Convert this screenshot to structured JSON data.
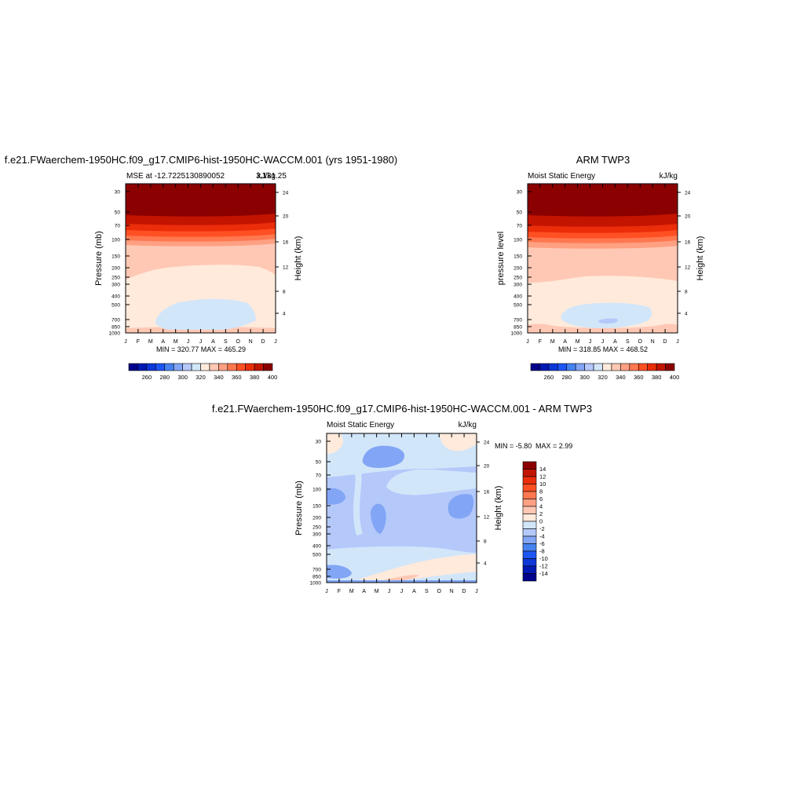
{
  "colors": {
    "scale": [
      "#00008b",
      "#0019b4",
      "#0d37d7",
      "#1e56f5",
      "#4682f0",
      "#82a5f5",
      "#b4c8fa",
      "#d2e6fa",
      "#ffeadb",
      "#ffc8b4",
      "#ffa082",
      "#ff7850",
      "#ff5023",
      "#eb2d0a",
      "#c31400",
      "#8b0000"
    ]
  },
  "panels": {
    "top_left": {
      "title": "f.e21.FWaerchem-1950HC.f09_g17.CMIP6-hist-1950HC-WACCM.001 (yrs 1951-1980)",
      "left_label": "MSE at -12.7225130890052",
      "overlap_label": "3,131.25",
      "units": "kJ/kg",
      "ylabel": "Pressure (mb)",
      "ylabel_right": "Height (km)",
      "minmax": "MIN = 320.77  MAX = 465.29"
    },
    "top_right": {
      "title": "ARM TWP3",
      "left_label": "Moist Static Energy",
      "units": "kJ/kg",
      "ylabel": "pressure level",
      "ylabel_right": "Height (km)",
      "minmax": "MIN = 318.85  MAX = 468.52"
    },
    "bottom": {
      "title": "f.e21.FWaerchem-1950HC.f09_g17.CMIP6-hist-1950HC-WACCM.001 - ARM TWP3",
      "left_label": "Moist Static Energy",
      "units": "kJ/kg",
      "ylabel": "Pressure (mb)",
      "ylabel_right": "Height (km)",
      "minmax_min": "MIN =  -5.80",
      "minmax_max": "MAX =   2.99"
    }
  },
  "chart_data": [
    {
      "type": "heatmap",
      "id": "model",
      "x": [
        "J",
        "F",
        "M",
        "A",
        "M",
        "J",
        "J",
        "A",
        "S",
        "O",
        "N",
        "D",
        "J"
      ],
      "y_ticks": [
        "30",
        "50",
        "70",
        "100",
        "150",
        "200",
        "250",
        "300",
        "400",
        "500",
        "700",
        "850",
        "1000"
      ],
      "y_right_ticks": [
        "24",
        "20",
        "16",
        "12",
        "8",
        "4"
      ],
      "bands_top_to_bottom": [
        ">400",
        "390-400",
        "380-390",
        "370-380",
        "360-370",
        "350-360",
        "340-350",
        "330-340",
        "320-330"
      ],
      "colorbar": {
        "labels": [
          "260",
          "280",
          "300",
          "320",
          "340",
          "360",
          "380",
          "400"
        ]
      },
      "min": 320.77,
      "max": 465.29
    },
    {
      "type": "heatmap",
      "id": "obs",
      "x": [
        "J",
        "F",
        "M",
        "A",
        "M",
        "J",
        "J",
        "A",
        "S",
        "O",
        "N",
        "D",
        "J"
      ],
      "y_ticks": [
        "30",
        "50",
        "70",
        "100",
        "150",
        "200",
        "250",
        "300",
        "400",
        "500",
        "700",
        "850",
        "1000"
      ],
      "y_right_ticks": [
        "24",
        "20",
        "16",
        "12",
        "8",
        "4"
      ],
      "bands_top_to_bottom": [
        ">400",
        "390-400",
        "380-390",
        "370-380",
        "360-370",
        "350-360",
        "340-350",
        "330-340",
        "320-330",
        "310-320"
      ],
      "colorbar": {
        "labels": [
          "260",
          "280",
          "300",
          "320",
          "340",
          "360",
          "380",
          "400"
        ]
      },
      "min": 318.85,
      "max": 468.52
    },
    {
      "type": "heatmap",
      "id": "difference",
      "x": [
        "J",
        "F",
        "M",
        "A",
        "M",
        "J",
        "J",
        "A",
        "S",
        "O",
        "N",
        "D",
        "J"
      ],
      "y_ticks": [
        "30",
        "50",
        "70",
        "100",
        "150",
        "200",
        "250",
        "300",
        "400",
        "500",
        "700",
        "850",
        "1000"
      ],
      "y_right_ticks": [
        "24",
        "20",
        "16",
        "12",
        "8",
        "4"
      ],
      "colorbar": {
        "labels": [
          "14",
          "12",
          "10",
          "8",
          "6",
          "4",
          "2",
          "0",
          "-2",
          "-4",
          "-6",
          "-8",
          "-10",
          "-12",
          "-14"
        ]
      },
      "min": -5.8,
      "max": 2.99
    }
  ]
}
